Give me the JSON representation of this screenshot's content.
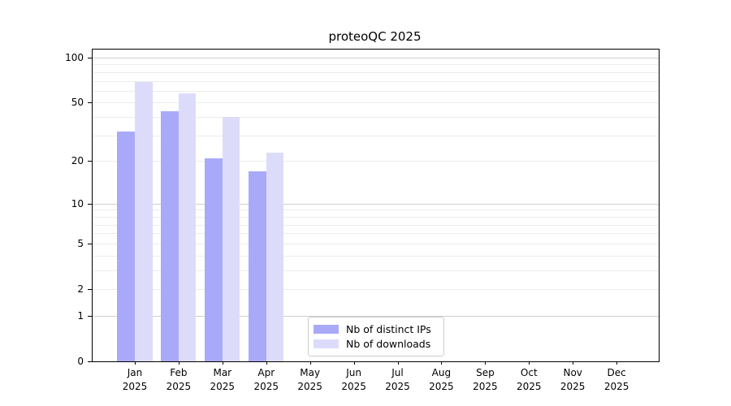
{
  "title": "proteoQC 2025",
  "chart_data": {
    "type": "bar",
    "title": "proteoQC 2025",
    "categories": [
      "Jan 2025",
      "Feb 2025",
      "Mar 2025",
      "Apr 2025",
      "May 2025",
      "Jun 2025",
      "Jul 2025",
      "Aug 2025",
      "Sep 2025",
      "Oct 2025",
      "Nov 2025",
      "Dec 2025"
    ],
    "month_labels": [
      "Jan",
      "Feb",
      "Mar",
      "Apr",
      "May",
      "Jun",
      "Jul",
      "Aug",
      "Sep",
      "Oct",
      "Nov",
      "Dec"
    ],
    "year_label": "2025",
    "series": [
      {
        "name": "Nb of distinct IPs",
        "color": "#a9a9fa",
        "values": [
          32,
          44,
          21,
          17,
          0,
          0,
          0,
          0,
          0,
          0,
          0,
          0
        ]
      },
      {
        "name": "Nb of downloads",
        "color": "#dcdcfa",
        "values": [
          69,
          58,
          40,
          23,
          0,
          0,
          0,
          0,
          0,
          0,
          0,
          0
        ]
      }
    ],
    "xlabel": "",
    "ylabel": "",
    "yscale": "log1p",
    "yticks": [
      0,
      1,
      2,
      5,
      10,
      20,
      50,
      100
    ],
    "ylim": [
      0,
      113
    ],
    "grid": true,
    "gridlines_major": [
      1,
      10,
      100
    ],
    "gridlines_minor": [
      2,
      3,
      4,
      5,
      6,
      7,
      8,
      9,
      20,
      30,
      40,
      50,
      60,
      70,
      80,
      90
    ],
    "legend_position": "lower-center-inside",
    "colors": {
      "grid_major": "#cfcfcf",
      "grid_minor": "#ececec",
      "axis": "#000000",
      "background": "#ffffff"
    }
  }
}
